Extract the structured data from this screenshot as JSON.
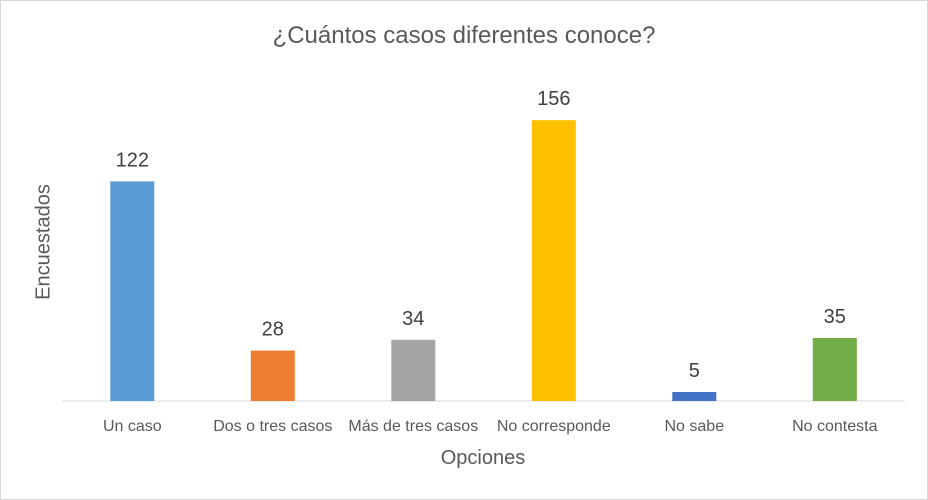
{
  "chart_data": {
    "type": "bar",
    "title": "¿Cuántos casos diferentes conoce?",
    "xlabel": "Opciones",
    "ylabel": "Encuestados",
    "categories": [
      "Un caso",
      "Dos o tres casos",
      "Más de tres casos",
      "No corresponde",
      "No sabe",
      "No contesta"
    ],
    "values": [
      122,
      28,
      34,
      156,
      5,
      35
    ],
    "colors": [
      "#5b9bd5",
      "#ed7d31",
      "#a5a5a5",
      "#ffc000",
      "#4472c4",
      "#70ad47"
    ],
    "ylim": [
      0,
      160
    ],
    "grid": false,
    "legend": "none"
  }
}
